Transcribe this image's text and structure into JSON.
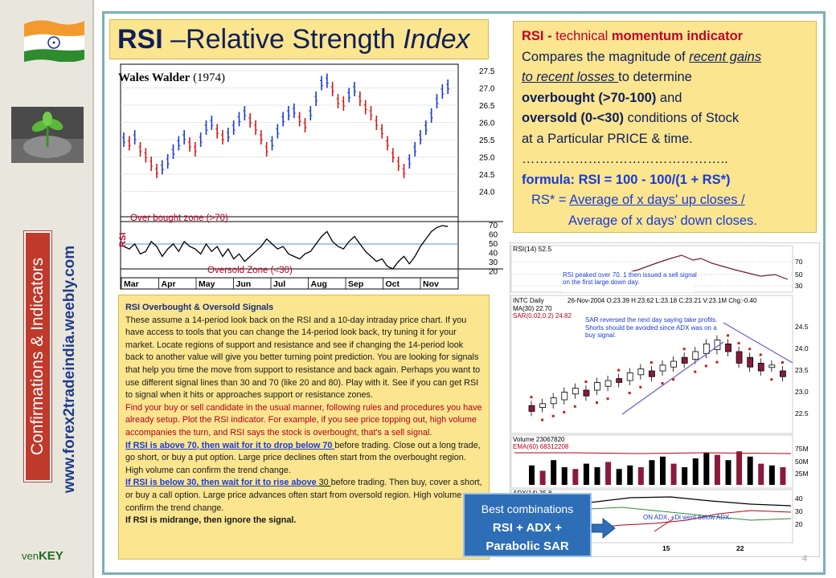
{
  "sidebar": {
    "category_label": "Confirmations & Indicators",
    "website": "www.forex2tradeindia.weebly.com",
    "brand_prefix": "ven",
    "brand_suffix": "KEY"
  },
  "title": {
    "bold": "RSI",
    "dash": " –Relative Strength ",
    "italic": "Index"
  },
  "wales": {
    "name": "Wales Walder",
    "year": "(1974)"
  },
  "chart1": {
    "price_ticks": [
      "27.5",
      "27.0",
      "26.5",
      "26.0",
      "25.5",
      "25.0",
      "24.5",
      "24.0"
    ],
    "rsi_ticks": [
      "70",
      "60",
      "50",
      "40",
      "30",
      "20"
    ],
    "months": [
      "Mar",
      "Apr",
      "May",
      "Jun",
      "Jul",
      "Aug",
      "Sep",
      "Oct",
      "Nov"
    ],
    "overbought_label": "Over bought zone (>70)",
    "oversold_label": "Oversold  Zone  (<30)",
    "rsi_axis_label": "RSI"
  },
  "rsi_box": {
    "l1_red": "RSI - ",
    "l1_text": "technical ",
    "l1_red2": "momentum indicator",
    "l2_text": "Compares the magnitude of ",
    "l2_u": "recent gains",
    "l3_u": "to recent losses ",
    "l3_text": " to determine",
    "l4_b": "overbought (>70-100)",
    "l4_text": "  and",
    "l5_b": "oversold (0-<30)",
    "l5_text": " conditions of Stock",
    "l6_text": "at a Particular PRICE & time.",
    "l7_dots": "………………………………………..",
    "formula": "formula:  RSI = 100 - 100/(1 + RS*)",
    "rs_prefix": "RS* = ",
    "rs_u": "Average of x days' up closes /",
    "rs_line2": "Average of x days' down closes."
  },
  "signals": {
    "heading": "RSI Overbought & Oversold Signals",
    "p1": "These assume a 14-period look back on the RSI and a 10-day intraday price chart. If you have access to tools that you can change the 14-period look back, try tuning it for your market.  Locate regions of support and resistance and see if changing the 14-period look back to another value will give you better turning point prediction. You are looking for signals that help you time the move from support to resistance and back again. Perhaps you want to use different signal lines than 30 and 70 (like 20 and 80). Play with it. See if you can get RSI to signal when it hits or approaches support or resistance zones.",
    "p2": "Find your buy or sell candidate in the usual manner, following rules and procedures you have already setup. Plot the RSI indicator. For example, if you see price topping out, high volume accompanies the turn, and RSI says the stock is overbought, that's a sell signal.",
    "r1_u": "If RSI is above 70, then wait for it to drop below 70 ",
    "r1_text": "before trading. Close out a long trade, go short, or buy a put option. Large price declines often start from the overbought region. High volume can confirm the trend change.",
    "r2_u": "If RSI is below 30, then wait for it to rise above ",
    "r2_u2": "30 ",
    "r2_text": "before trading. Then buy, cover a short, or buy a call option. Large price advances often start from oversold region. High volume can confirm the trend change.",
    "r3": "If RSI is midrange, then ignore the signal."
  },
  "chart2": {
    "rsi_label": "RSI(14) 52.5",
    "rsi_ticks": [
      "70",
      "50",
      "30"
    ],
    "rsi_note": "RSI peaked over 70.  1 then issued a sell signal on the first large down day.",
    "header_ticker": "INTC Daily",
    "header_values": "26-Nov-2004 O:23.39 H:23.62 L:23.18 C:23.21 V:23.1M Chg:-0.40",
    "ma_label": "MA(30) 22.70",
    "sar_label": "SAR(0.02,0.2) 24.82",
    "sar_note": "SAR reversed the next day saying take profits. Shorts should be avoided since ADX was on a buy signal.",
    "price_ticks": [
      "24.5",
      "24.0",
      "23.5",
      "23.0",
      "22.5"
    ],
    "volume_label": "Volume 23067820",
    "ema_label": "EMA(60) 68312208",
    "volume_ticks": [
      "75M",
      "50M",
      "25M"
    ],
    "adx_label": "ADX(14) 35.8",
    "adx_note": "ON ADX, +Di went below ADX.",
    "adx_ticks": [
      "40",
      "30",
      "20"
    ],
    "date_ticks": [
      "15",
      "22"
    ]
  },
  "best": {
    "line1": "Best combinations",
    "line2": "RSI + ADX +",
    "line3": "Parabolic SAR"
  },
  "page_number": "4",
  "colors": {
    "accent_yellow": "#fbe58f",
    "navy": "#101e5a",
    "red": "#c0002b",
    "blue_box": "#2e6eb7"
  }
}
